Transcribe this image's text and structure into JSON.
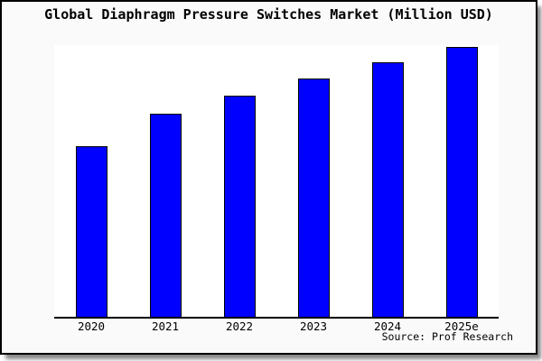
{
  "chart_data": {
    "type": "bar",
    "title": "Global Diaphragm Pressure Switches Market (Million USD)",
    "categories": [
      "2020",
      "2021",
      "2022",
      "2023",
      "2024",
      "2025e"
    ],
    "values": [
      63,
      75.2,
      81.7,
      88,
      94,
      100
    ],
    "unit": "Million USD",
    "xlabel": "",
    "ylabel": "",
    "ylim": [
      0,
      100.5
    ],
    "grid": false,
    "y_axis_visible": false,
    "legend": "none",
    "source": "Source: Prof Research",
    "bar_color": "#0000ff",
    "bar_border_color": "#000000"
  },
  "colors": {
    "figure_background": "#fafafa",
    "plot_background": "#ffffff",
    "frame_border": "#000000",
    "text": "#000000"
  }
}
